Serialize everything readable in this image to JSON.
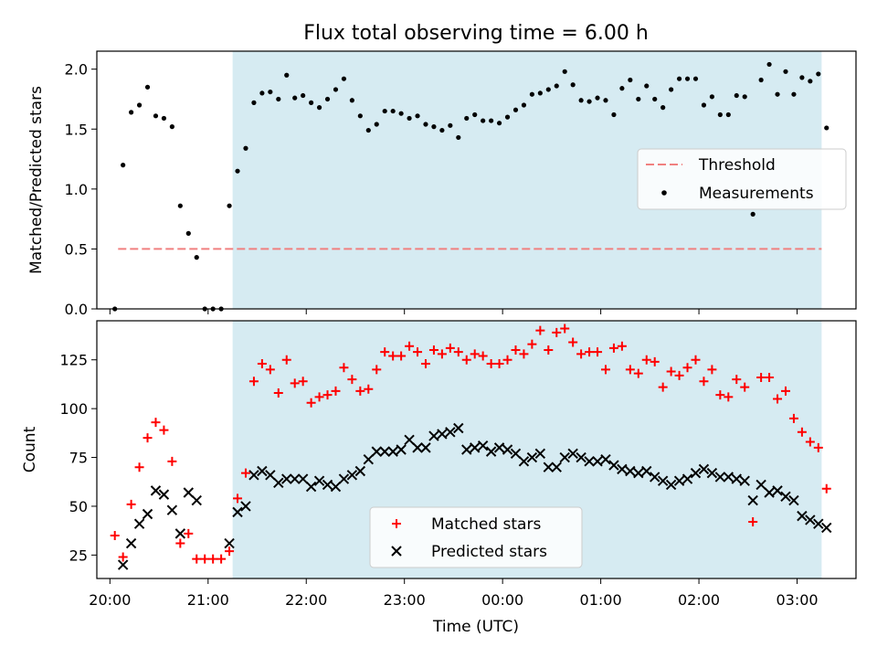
{
  "title": "Flux total observing time = 6.00 h",
  "colors": {
    "shade": "#add8e6",
    "threshold": "#f08080",
    "measurement": "#000000",
    "matched": "#ff0000",
    "predicted": "#000000"
  },
  "chart_data": [
    {
      "type": "scatter",
      "panel": "top",
      "title": "Flux total observing time = 6.00 h",
      "xlabel": "",
      "ylabel": "Matched/Predicted stars",
      "xlim": [
        "19:52",
        "03:36"
      ],
      "ylim": [
        0,
        2.15
      ],
      "yticks": [
        0.0,
        0.5,
        1.0,
        1.5,
        2.0
      ],
      "ytick_labels": [
        "0.0",
        "0.5",
        "1.0",
        "1.5",
        "2.0"
      ],
      "shaded_region": [
        "21:15",
        "03:15"
      ],
      "legend_position": "center-right",
      "threshold": {
        "name": "Threshold",
        "value": 0.5,
        "x_range": [
          "20:05",
          "03:15"
        ],
        "style": "dashed"
      },
      "series": [
        {
          "name": "Measurements",
          "x": [
            "20:03",
            "20:08",
            "20:13",
            "20:18",
            "20:23",
            "20:28",
            "20:33",
            "20:38",
            "20:43",
            "20:48",
            "20:53",
            "20:58",
            "21:03",
            "21:08",
            "21:13",
            "21:18",
            "21:23",
            "21:28",
            "21:33",
            "21:38",
            "21:43",
            "21:48",
            "21:53",
            "21:58",
            "22:03",
            "22:08",
            "22:13",
            "22:18",
            "22:23",
            "22:28",
            "22:33",
            "22:38",
            "22:43",
            "22:48",
            "22:53",
            "22:58",
            "23:03",
            "23:08",
            "23:13",
            "23:18",
            "23:23",
            "23:28",
            "23:33",
            "23:38",
            "23:43",
            "23:48",
            "23:53",
            "23:58",
            "00:03",
            "00:08",
            "00:13",
            "00:18",
            "00:23",
            "00:28",
            "00:33",
            "00:38",
            "00:43",
            "00:48",
            "00:53",
            "00:58",
            "01:03",
            "01:08",
            "01:13",
            "01:18",
            "01:23",
            "01:28",
            "01:33",
            "01:38",
            "01:43",
            "01:48",
            "01:53",
            "01:58",
            "02:03",
            "02:08",
            "02:13",
            "02:18",
            "02:23",
            "02:28",
            "02:33",
            "02:38",
            "02:43",
            "02:48",
            "02:53",
            "02:58",
            "03:03",
            "03:08",
            "03:13",
            "03:18"
          ],
          "y": [
            0.0,
            1.2,
            1.64,
            1.7,
            1.85,
            1.61,
            1.59,
            1.52,
            0.86,
            0.63,
            0.43,
            0.0,
            0.0,
            0.0,
            0.86,
            1.15,
            1.34,
            1.72,
            1.8,
            1.81,
            1.75,
            1.95,
            1.76,
            1.78,
            1.72,
            1.68,
            1.75,
            1.83,
            1.92,
            1.74,
            1.61,
            1.49,
            1.54,
            1.65,
            1.65,
            1.63,
            1.59,
            1.61,
            1.54,
            1.52,
            1.49,
            1.53,
            1.43,
            1.59,
            1.62,
            1.57,
            1.57,
            1.55,
            1.6,
            1.66,
            1.7,
            1.79,
            1.8,
            1.83,
            1.86,
            1.98,
            1.87,
            1.74,
            1.73,
            1.76,
            1.74,
            1.62,
            1.84,
            1.91,
            1.75,
            1.86,
            1.75,
            1.68,
            1.83,
            1.92,
            1.92,
            1.92,
            1.7,
            1.77,
            1.62,
            1.62,
            1.78,
            1.77,
            0.79,
            1.91,
            2.04,
            1.79,
            1.98,
            1.79,
            1.93,
            1.9,
            1.96,
            1.51
          ]
        }
      ]
    },
    {
      "type": "scatter",
      "panel": "bottom",
      "xlabel": "Time (UTC)",
      "ylabel": "Count",
      "xlim": [
        "19:52",
        "03:36"
      ],
      "ylim": [
        13,
        145
      ],
      "yticks": [
        25,
        50,
        75,
        100,
        125
      ],
      "ytick_labels": [
        "25",
        "50",
        "75",
        "100",
        "125"
      ],
      "xticks": [
        "20:00",
        "21:00",
        "22:00",
        "23:00",
        "00:00",
        "01:00",
        "02:00",
        "03:00"
      ],
      "xtick_labels": [
        "20:00",
        "21:00",
        "22:00",
        "23:00",
        "00:00",
        "01:00",
        "02:00",
        "03:00"
      ],
      "shaded_region": [
        "21:15",
        "03:15"
      ],
      "legend_position": "lower-center",
      "series": [
        {
          "name": "Matched stars",
          "marker": "plus",
          "x": [
            "20:03",
            "20:08",
            "20:13",
            "20:18",
            "20:23",
            "20:28",
            "20:33",
            "20:38",
            "20:43",
            "20:48",
            "20:53",
            "20:58",
            "21:03",
            "21:08",
            "21:13",
            "21:18",
            "21:23",
            "21:28",
            "21:33",
            "21:38",
            "21:43",
            "21:48",
            "21:53",
            "21:58",
            "22:03",
            "22:08",
            "22:13",
            "22:18",
            "22:23",
            "22:28",
            "22:33",
            "22:38",
            "22:43",
            "22:48",
            "22:53",
            "22:58",
            "23:03",
            "23:08",
            "23:13",
            "23:18",
            "23:23",
            "23:28",
            "23:33",
            "23:38",
            "23:43",
            "23:48",
            "23:53",
            "23:58",
            "00:03",
            "00:08",
            "00:13",
            "00:18",
            "00:23",
            "00:28",
            "00:33",
            "00:38",
            "00:43",
            "00:48",
            "00:53",
            "00:58",
            "01:03",
            "01:08",
            "01:13",
            "01:18",
            "01:23",
            "01:28",
            "01:33",
            "01:38",
            "01:43",
            "01:48",
            "01:53",
            "01:58",
            "02:03",
            "02:08",
            "02:13",
            "02:18",
            "02:23",
            "02:28",
            "02:33",
            "02:38",
            "02:43",
            "02:48",
            "02:53",
            "02:58",
            "03:03",
            "03:08",
            "03:13",
            "03:18"
          ],
          "y": [
            35,
            24,
            51,
            70,
            85,
            93,
            89,
            73,
            31,
            36,
            23,
            23,
            23,
            23,
            27,
            54,
            67,
            114,
            123,
            120,
            108,
            125,
            113,
            114,
            103,
            106,
            107,
            109,
            121,
            115,
            109,
            110,
            120,
            129,
            127,
            127,
            132,
            129,
            123,
            130,
            128,
            131,
            129,
            125,
            128,
            127,
            123,
            123,
            125,
            130,
            128,
            133,
            140,
            130,
            139,
            141,
            134,
            128,
            129,
            129,
            120,
            131,
            132,
            120,
            118,
            125,
            124,
            111,
            119,
            117,
            121,
            125,
            114,
            120,
            107,
            106,
            115,
            111,
            42,
            116,
            116,
            105,
            109,
            95,
            88,
            83,
            80,
            59
          ]
        },
        {
          "name": "Predicted stars",
          "marker": "x",
          "x": [
            "20:08",
            "20:13",
            "20:18",
            "20:23",
            "20:28",
            "20:33",
            "20:38",
            "20:43",
            "20:48",
            "20:53",
            "21:13",
            "21:18",
            "21:23",
            "21:28",
            "21:33",
            "21:38",
            "21:43",
            "21:48",
            "21:53",
            "21:58",
            "22:03",
            "22:08",
            "22:13",
            "22:18",
            "22:23",
            "22:28",
            "22:33",
            "22:38",
            "22:43",
            "22:48",
            "22:53",
            "22:58",
            "23:03",
            "23:08",
            "23:13",
            "23:18",
            "23:23",
            "23:28",
            "23:33",
            "23:38",
            "23:43",
            "23:48",
            "23:53",
            "23:58",
            "00:03",
            "00:08",
            "00:13",
            "00:18",
            "00:23",
            "00:28",
            "00:33",
            "00:38",
            "00:43",
            "00:48",
            "00:53",
            "00:58",
            "01:03",
            "01:08",
            "01:13",
            "01:18",
            "01:23",
            "01:28",
            "01:33",
            "01:38",
            "01:43",
            "01:48",
            "01:53",
            "01:58",
            "02:03",
            "02:08",
            "02:13",
            "02:18",
            "02:23",
            "02:28",
            "02:33",
            "02:38",
            "02:43",
            "02:48",
            "02:53",
            "02:58",
            "03:03",
            "03:08",
            "03:13",
            "03:18"
          ],
          "y": [
            20,
            31,
            41,
            46,
            58,
            56,
            48,
            36,
            57,
            53,
            31,
            47,
            50,
            66,
            68,
            66,
            62,
            64,
            64,
            64,
            60,
            63,
            61,
            60,
            64,
            66,
            68,
            74,
            78,
            78,
            78,
            79,
            84,
            80,
            80,
            86,
            87,
            88,
            90,
            79,
            80,
            81,
            78,
            80,
            79,
            77,
            73,
            75,
            77,
            70,
            70,
            75,
            77,
            75,
            73,
            73,
            74,
            71,
            69,
            68,
            67,
            68,
            65,
            63,
            61,
            63,
            64,
            67,
            69,
            67,
            65,
            65,
            64,
            63,
            53,
            61,
            57,
            58,
            55,
            53,
            45,
            43,
            41,
            39
          ]
        }
      ]
    }
  ]
}
